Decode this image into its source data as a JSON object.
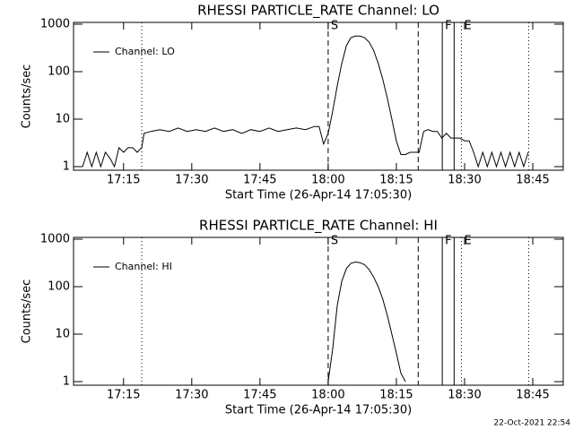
{
  "chart_data": [
    {
      "type": "line",
      "title": "RHESSI PARTICLE_RATE Channel: LO",
      "x_label": "Start Time (26-Apr-14 17:05:30)",
      "y_label": "Counts/sec",
      "log_y": true,
      "legend": "top-left",
      "xlim": [
        1024,
        1131.7
      ],
      "ylim": [
        0.84,
        1090
      ],
      "xticks": [
        {
          "value": 1035,
          "label": "17:15"
        },
        {
          "value": 1050,
          "label": "17:30"
        },
        {
          "value": 1065,
          "label": "17:45"
        },
        {
          "value": 1080,
          "label": "18:00"
        },
        {
          "value": 1095,
          "label": "18:15"
        },
        {
          "value": 1110,
          "label": "18:30"
        },
        {
          "value": 1125,
          "label": "18:45"
        }
      ],
      "yticks": [
        1,
        10,
        100,
        1000
      ],
      "x": [
        1026,
        1027,
        1028,
        1029,
        1030,
        1031,
        1032,
        1033,
        1034,
        1035,
        1036,
        1037,
        1038,
        1039,
        1039.5,
        1041,
        1043,
        1045,
        1047,
        1049,
        1051,
        1053,
        1055,
        1057,
        1059,
        1061,
        1063,
        1065,
        1067,
        1069,
        1071,
        1073,
        1075,
        1077,
        1078,
        1079,
        1080,
        1081,
        1082,
        1083,
        1084,
        1085,
        1086,
        1087,
        1088,
        1089,
        1090,
        1091,
        1092,
        1093,
        1094,
        1095,
        1096,
        1097,
        1098,
        1099,
        1100,
        1101,
        1102,
        1103,
        1104,
        1105,
        1106,
        1107,
        1108,
        1109,
        1110,
        1111,
        1112,
        1113,
        1114,
        1115,
        1116,
        1117,
        1118,
        1119,
        1120,
        1121,
        1122,
        1123,
        1124
      ],
      "series": [
        {
          "name": "Channel: LO",
          "color": "#000000",
          "values": [
            1,
            2,
            1,
            2,
            1,
            2,
            1.5,
            1,
            2.5,
            2,
            2.5,
            2.5,
            2,
            2.5,
            5,
            5.5,
            6,
            5.5,
            6.5,
            5.5,
            6,
            5.5,
            6.5,
            5.5,
            6,
            5,
            6,
            5.5,
            6.5,
            5.5,
            6,
            6.5,
            6,
            7,
            7,
            3,
            5,
            15,
            50,
            150,
            350,
            520,
            560,
            560,
            520,
            420,
            280,
            150,
            70,
            28,
            10,
            3.5,
            1.8,
            1.8,
            2,
            2,
            2,
            5.5,
            6,
            5.5,
            5.5,
            4,
            5,
            4,
            4,
            4,
            3.5,
            3.5,
            2,
            1,
            2,
            1,
            2,
            1,
            2,
            1,
            2,
            1,
            2,
            1,
            2
          ]
        }
      ],
      "vlines": [
        {
          "x": 1039,
          "style": "dotted"
        },
        {
          "x": 1080,
          "style": "dashed",
          "label": "S"
        },
        {
          "x": 1099.8,
          "style": "dashed"
        },
        {
          "x": 1105.1,
          "style": "solid",
          "label": "F"
        },
        {
          "x": 1107.7,
          "style": "solid"
        },
        {
          "x": 1109.3,
          "style": "dotted",
          "label": "E"
        },
        {
          "x": 1124.1,
          "style": "dotted"
        }
      ]
    },
    {
      "type": "line",
      "title": "RHESSI PARTICLE_RATE Channel: HI",
      "x_label": "Start Time (26-Apr-14 17:05:30)",
      "y_label": "Counts/sec",
      "log_y": true,
      "legend": "top-left",
      "xlim": [
        1024,
        1131.7
      ],
      "ylim": [
        0.84,
        1090
      ],
      "xticks": [
        {
          "value": 1035,
          "label": "17:15"
        },
        {
          "value": 1050,
          "label": "17:30"
        },
        {
          "value": 1065,
          "label": "17:45"
        },
        {
          "value": 1080,
          "label": "18:00"
        },
        {
          "value": 1095,
          "label": "18:15"
        },
        {
          "value": 1110,
          "label": "18:30"
        },
        {
          "value": 1125,
          "label": "18:45"
        }
      ],
      "yticks": [
        1,
        10,
        100,
        1000
      ],
      "x": [
        1080,
        1081,
        1082,
        1083,
        1084,
        1085,
        1086,
        1087,
        1088,
        1089,
        1090,
        1091,
        1092,
        1093,
        1094,
        1095,
        1096,
        1097
      ],
      "series": [
        {
          "name": "Channel: HI",
          "color": "#000000",
          "values": [
            1,
            5,
            40,
            130,
            240,
            310,
            330,
            320,
            290,
            230,
            160,
            100,
            55,
            25,
            10,
            4,
            1.5,
            1
          ]
        }
      ],
      "vlines": [
        {
          "x": 1039,
          "style": "dotted"
        },
        {
          "x": 1080,
          "style": "dashed",
          "label": "S"
        },
        {
          "x": 1099.8,
          "style": "dashed"
        },
        {
          "x": 1105.1,
          "style": "solid",
          "label": "F"
        },
        {
          "x": 1107.7,
          "style": "solid"
        },
        {
          "x": 1109.3,
          "style": "dotted",
          "label": "E"
        },
        {
          "x": 1124.1,
          "style": "dotted"
        }
      ]
    }
  ],
  "footer": "22-Oct-2021 22:54"
}
